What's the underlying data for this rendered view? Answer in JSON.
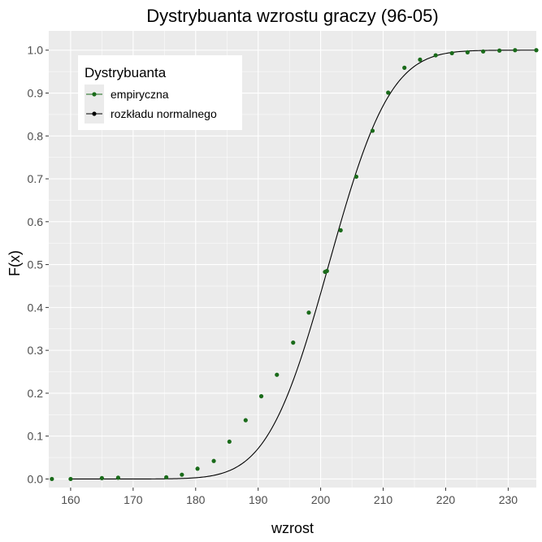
{
  "chart_data": {
    "type": "scatter",
    "title": "Dystrybuanta wzrostu graczy (96-05)",
    "xlabel": "wzrost",
    "ylabel": "F(x)",
    "xlim": [
      156.5,
      234.5
    ],
    "ylim": [
      -0.02,
      1.045
    ],
    "x_ticks": [
      160,
      170,
      180,
      190,
      200,
      210,
      220,
      230
    ],
    "y_ticks": [
      "0.0",
      "0.1",
      "0.2",
      "0.3",
      "0.4",
      "0.5",
      "0.6",
      "0.7",
      "0.8",
      "0.9",
      "1.0"
    ],
    "grid": true,
    "legend": {
      "title": "Dystrybuanta",
      "position": "top-left",
      "entries": [
        "empiryczna",
        "rozkładu normalnego"
      ]
    },
    "colors": {
      "empirical": "#1a6b1a",
      "normal": "#000000",
      "panel": "#ebebeb",
      "grid": "#ffffff"
    },
    "series": [
      {
        "name": "empiryczna",
        "kind": "points",
        "x": [
          157,
          160,
          165,
          167.6,
          175.3,
          177.8,
          180.3,
          182.9,
          185.4,
          188,
          190.5,
          193,
          195.6,
          198.1,
          200.7,
          201,
          203.2,
          205.7,
          208.3,
          210.8,
          213.4,
          215.9,
          218.4,
          221,
          223.5,
          226,
          228.6,
          231.1,
          234.5
        ],
        "y": [
          0.0,
          0.0,
          0.002,
          0.003,
          0.004,
          0.01,
          0.024,
          0.042,
          0.087,
          0.137,
          0.193,
          0.243,
          0.318,
          0.388,
          0.483,
          0.485,
          0.58,
          0.705,
          0.812,
          0.901,
          0.959,
          0.978,
          0.988,
          0.993,
          0.995,
          0.997,
          0.999,
          1.0,
          1.0
        ]
      },
      {
        "name": "rozkładu normalnego",
        "kind": "line",
        "distribution": {
          "mean": 201.3,
          "sd": 7.7
        }
      }
    ]
  }
}
